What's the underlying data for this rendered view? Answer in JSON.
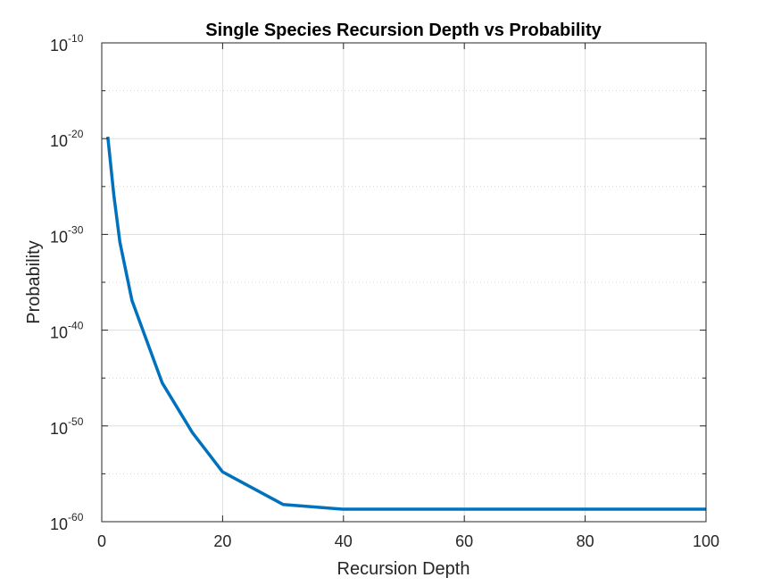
{
  "chart_data": {
    "type": "line",
    "title": "Single Species Recursion Depth vs Probability",
    "xlabel": "Recursion Depth",
    "ylabel": "Probability",
    "xlim": [
      0,
      100
    ],
    "ylim_log10": [
      -60,
      -10
    ],
    "yscale": "log",
    "grid": true,
    "x_ticks": [
      0,
      20,
      40,
      60,
      80,
      100
    ],
    "y_ticks": [
      {
        "base": "10",
        "exp": "-60",
        "log10": -60
      },
      {
        "base": "10",
        "exp": "-50",
        "log10": -50
      },
      {
        "base": "10",
        "exp": "-40",
        "log10": -40
      },
      {
        "base": "10",
        "exp": "-30",
        "log10": -30
      },
      {
        "base": "10",
        "exp": "-20",
        "log10": -20
      },
      {
        "base": "10",
        "exp": "-10",
        "log10": -10
      }
    ],
    "y_minor_log10": [
      -55,
      -45,
      -35,
      -25,
      -15
    ],
    "series": [
      {
        "color": "#0072bd",
        "x": [
          1,
          2,
          3,
          5,
          10,
          15,
          20,
          30,
          40,
          50,
          60,
          70,
          80,
          90,
          100
        ],
        "log10_y": [
          -19.8,
          -25.9,
          -30.8,
          -36.9,
          -45.5,
          -50.7,
          -54.8,
          -58.2,
          -58.7,
          -58.7,
          -58.7,
          -58.7,
          -58.7,
          -58.7,
          -58.7
        ]
      }
    ]
  }
}
